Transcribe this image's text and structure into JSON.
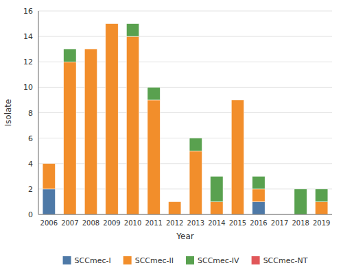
{
  "chart_data": {
    "type": "bar",
    "stacked": true,
    "categories": [
      "2006",
      "2007",
      "2008",
      "2009",
      "2010",
      "2011",
      "2012",
      "2013",
      "2014",
      "2015",
      "2016",
      "2017",
      "2018",
      "2019"
    ],
    "series": [
      {
        "name": "SCCmec-I",
        "color": "#4e79a7",
        "values": [
          2,
          0,
          0,
          0,
          0,
          0,
          0,
          0,
          0,
          0,
          1,
          0,
          0,
          0
        ]
      },
      {
        "name": "SCCmec-II",
        "color": "#f28e2b",
        "values": [
          2,
          12,
          13,
          15,
          14,
          9,
          1,
          5,
          1,
          9,
          1,
          0,
          0,
          1
        ]
      },
      {
        "name": "SCCmec-IV",
        "color": "#59a14f",
        "values": [
          0,
          1,
          0,
          0,
          1,
          1,
          0,
          1,
          2,
          0,
          1,
          0,
          2,
          1
        ]
      },
      {
        "name": "SCCmec-NT",
        "color": "#e15759",
        "values": [
          0,
          0,
          0,
          0,
          0,
          0,
          0,
          0,
          0,
          0,
          0,
          0,
          0,
          0
        ]
      }
    ],
    "xlabel": "Year",
    "ylabel": "Isolate",
    "ylim": [
      0,
      16
    ],
    "yticks": [
      0,
      2,
      4,
      6,
      8,
      10,
      12,
      14,
      16
    ],
    "grid": true,
    "legend": "bottom"
  }
}
